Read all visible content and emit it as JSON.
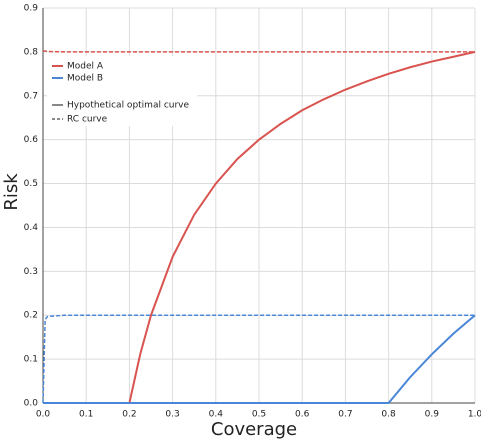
{
  "chart_data": {
    "type": "line",
    "x_label": "Coverage",
    "y_label": "Risk",
    "x": [
      0,
      0.005,
      0.01,
      0.05,
      0.1,
      0.15,
      0.2,
      0.225,
      0.25,
      0.3,
      0.35,
      0.4,
      0.45,
      0.5,
      0.55,
      0.6,
      0.65,
      0.7,
      0.75,
      0.8,
      0.85,
      0.9,
      0.95,
      1.0
    ],
    "series": [
      {
        "name": "Model A",
        "color": "#d9534f",
        "values": [
          0,
          0,
          0,
          0,
          0,
          0,
          0,
          0.111,
          0.2,
          0.333,
          0.429,
          0.5,
          0.556,
          0.6,
          0.636,
          0.667,
          0.692,
          0.714,
          0.733,
          0.75,
          0.765,
          0.778,
          0.789,
          0.8
        ],
        "rc_values": [
          0.802,
          0.802,
          0.801,
          0.8,
          0.8,
          0.8,
          0.8,
          0.8,
          0.8,
          0.8,
          0.8,
          0.8,
          0.8,
          0.8,
          0.8,
          0.8,
          0.8,
          0.8,
          0.8,
          0.8,
          0.8,
          0.8,
          0.8,
          0.8
        ]
      },
      {
        "name": "Model B",
        "color": "#4a86d8",
        "values": [
          0,
          0,
          0,
          0,
          0,
          0,
          0,
          0,
          0,
          0,
          0,
          0,
          0,
          0,
          0,
          0,
          0,
          0,
          0,
          0,
          0.059,
          0.111,
          0.158,
          0.2
        ],
        "rc_values": [
          0,
          0.19,
          0.197,
          0.2,
          0.2,
          0.2,
          0.2,
          0.2,
          0.2,
          0.2,
          0.2,
          0.2,
          0.2,
          0.2,
          0.2,
          0.2,
          0.2,
          0.2,
          0.2,
          0.2,
          0.2,
          0.2,
          0.2,
          0.2
        ]
      }
    ],
    "curve_styles": [
      {
        "name": "Hypothetical optimal curve",
        "dashed": false
      },
      {
        "name": "RC curve",
        "dashed": true
      }
    ],
    "xlim": [
      0,
      1.0
    ],
    "xticks": [
      {
        "value": 0,
        "label": "0.0"
      },
      0.1,
      0.2,
      0.3,
      0.4,
      0.5,
      0.6,
      0.7,
      0.8,
      0.9,
      {
        "value": 1,
        "label": "1.0"
      }
    ],
    "ylim": [
      0,
      0.9
    ],
    "yticks": [
      {
        "value": 0,
        "label": "0.0"
      },
      0.1,
      0.2,
      0.3,
      0.4,
      0.5,
      0.6,
      0.7,
      0.8,
      0.9
    ],
    "grid": true
  }
}
